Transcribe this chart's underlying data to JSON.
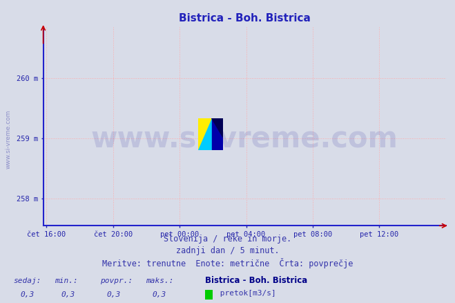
{
  "title": "Bistrica - Boh. Bistrica",
  "title_color": "#2222bb",
  "title_fontsize": 11,
  "bg_color": "#d8dce8",
  "plot_bg_color": "#d8dce8",
  "ylabel_ticks": [
    "258 m",
    "259 m",
    "260 m"
  ],
  "ytick_values": [
    258,
    259,
    260
  ],
  "ylim": [
    257.55,
    260.85
  ],
  "xlim_labels": [
    "čet 16:00",
    "čet 20:00",
    "pet 00:00",
    "pet 04:00",
    "pet 08:00",
    "pet 12:00"
  ],
  "xtick_positions": [
    0,
    4,
    8,
    12,
    16,
    20
  ],
  "xlim": [
    -0.2,
    24.0
  ],
  "grid_color": "#ffaaaa",
  "axis_color": "#2222cc",
  "tick_color": "#2222aa",
  "watermark_text": "www.si-vreme.com",
  "watermark_color": "#1a1a99",
  "watermark_alpha": 0.13,
  "watermark_fontsize": 30,
  "sidewater_text": "www.si-vreme.com",
  "sidewater_color": "#4444aa",
  "sidewater_alpha": 0.5,
  "footer_line1": "Slovenija / reke in morje.",
  "footer_line2": "zadnji dan / 5 minut.",
  "footer_line3": "Meritve: trenutne  Enote: metrične  Črta: povprečje",
  "footer_color": "#3333aa",
  "footer_fontsize": 8.5,
  "stats_labels": [
    "sedaj:",
    "min.:",
    "povpr.:",
    "maks.:"
  ],
  "stats_values": [
    "0,3",
    "0,3",
    "0,3",
    "0,3"
  ],
  "stats_bold_label": "Bistrica - Boh. Bistrica",
  "legend_color": "#00cc00",
  "legend_text": " pretok[m3/s]"
}
